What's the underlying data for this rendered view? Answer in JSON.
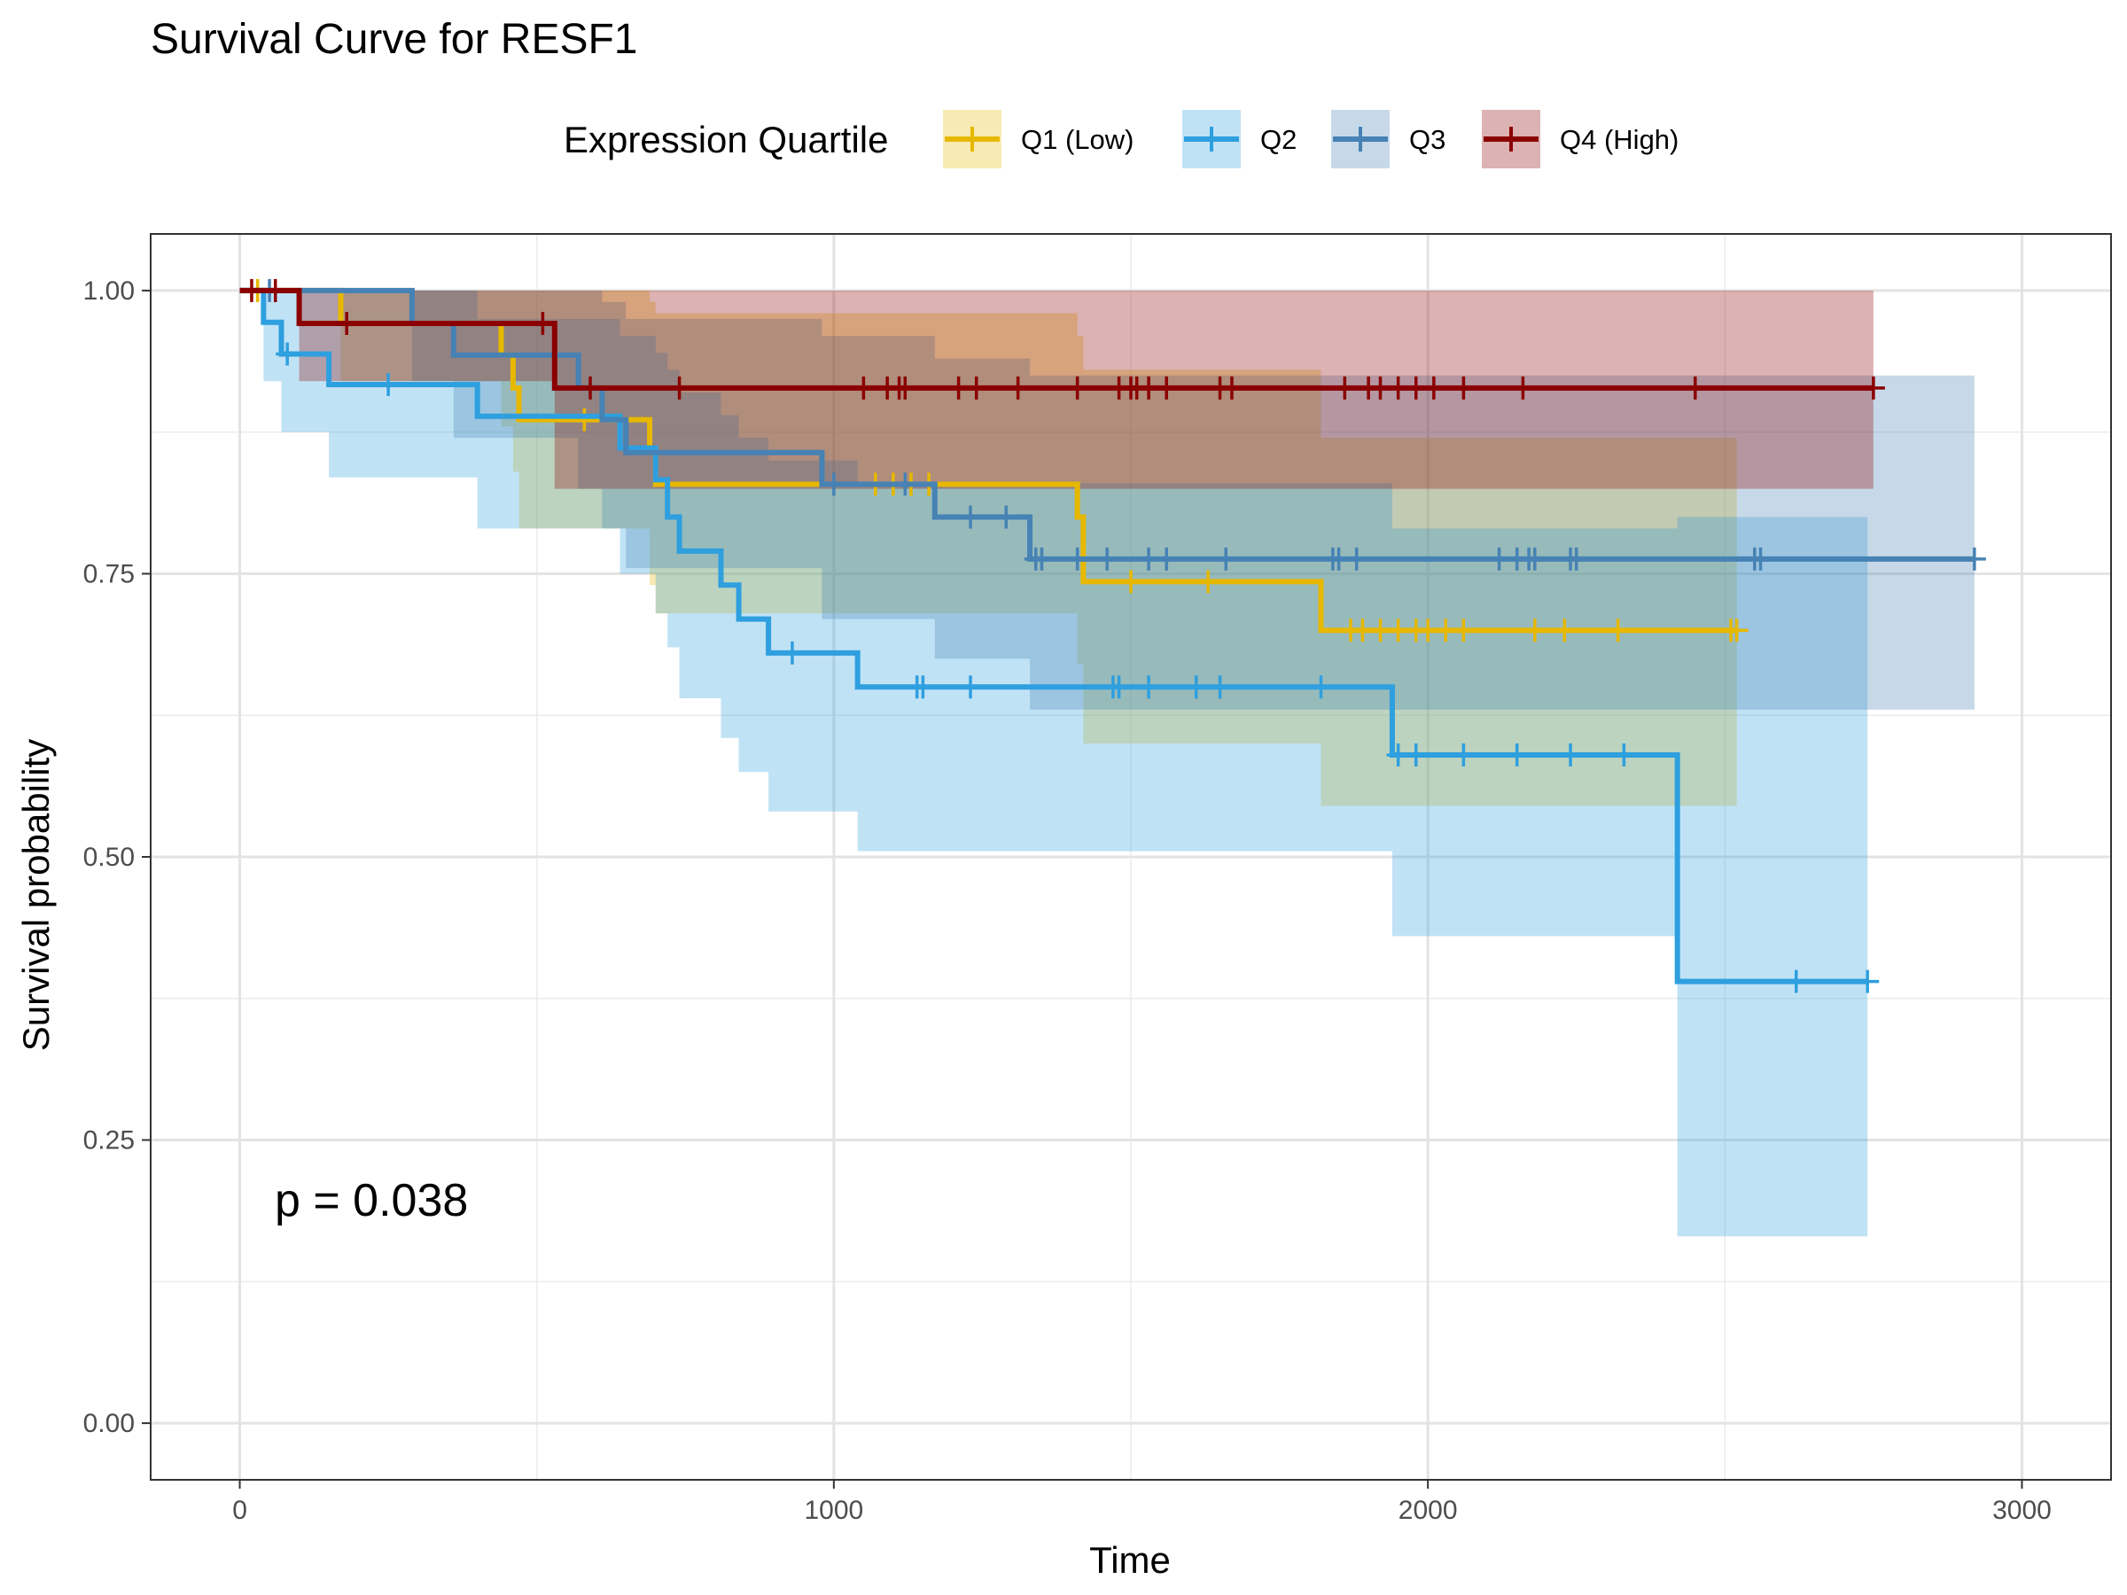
{
  "chart_data": {
    "type": "line",
    "title": "Survival Curve for RESF1",
    "xlabel": "Time",
    "ylabel": "Survival probability",
    "xlim": [
      -150,
      3150
    ],
    "ylim": [
      -0.05,
      1.05
    ],
    "x_ticks": [
      0,
      1000,
      2000,
      3000
    ],
    "y_ticks": [
      0,
      0.25,
      0.5,
      0.75,
      1
    ],
    "x_tick_labels": [
      "0",
      "1000",
      "2000",
      "3000"
    ],
    "y_tick_labels": [
      "0.00",
      "0.25",
      "0.50",
      "0.75",
      "1.00"
    ],
    "grid": true,
    "legend": {
      "title": "Expression Quartile",
      "placement": "top",
      "entries": [
        "Q1 (Low)",
        "Q2",
        "Q3",
        "Q4 (High)"
      ]
    },
    "annotation": "p = 0.038",
    "series": [
      {
        "name": "Q1 (Low)",
        "color": "#E7B800",
        "steps": [
          [
            0,
            1.0
          ],
          [
            170,
            0.971
          ],
          [
            440,
            0.943
          ],
          [
            460,
            0.914
          ],
          [
            470,
            0.886
          ],
          [
            690,
            0.857
          ],
          [
            700,
            0.829
          ],
          [
            1410,
            0.8
          ],
          [
            1420,
            0.771
          ],
          [
            1420,
            0.743
          ],
          [
            1820,
            0.7
          ],
          [
            2520,
            0.7
          ]
        ],
        "upper": [
          [
            0,
            1.0
          ],
          [
            170,
            1.0
          ],
          [
            440,
            1.0
          ],
          [
            460,
            1.0
          ],
          [
            470,
            1.0
          ],
          [
            690,
            0.99
          ],
          [
            700,
            0.98
          ],
          [
            1410,
            0.96
          ],
          [
            1420,
            0.93
          ],
          [
            1820,
            0.87
          ],
          [
            2520,
            0.87
          ]
        ],
        "lower": [
          [
            0,
            1.0
          ],
          [
            170,
            0.92
          ],
          [
            440,
            0.88
          ],
          [
            460,
            0.84
          ],
          [
            470,
            0.79
          ],
          [
            690,
            0.74
          ],
          [
            700,
            0.715
          ],
          [
            1410,
            0.67
          ],
          [
            1420,
            0.6
          ],
          [
            1820,
            0.545
          ],
          [
            2520,
            0.545
          ]
        ],
        "censor": [
          30,
          580,
          1070,
          1100,
          1130,
          1160,
          1500,
          1630,
          1870,
          1890,
          1920,
          1950,
          1980,
          2000,
          2030,
          2060,
          2180,
          2230,
          2320,
          2510,
          2520
        ]
      },
      {
        "name": "Q2",
        "color": "#2E9FDF",
        "steps": [
          [
            0,
            1.0
          ],
          [
            40,
            0.972
          ],
          [
            70,
            0.944
          ],
          [
            150,
            0.917
          ],
          [
            400,
            0.889
          ],
          [
            640,
            0.861
          ],
          [
            700,
            0.833
          ],
          [
            720,
            0.8
          ],
          [
            740,
            0.77
          ],
          [
            810,
            0.74
          ],
          [
            840,
            0.71
          ],
          [
            890,
            0.68
          ],
          [
            1040,
            0.65
          ],
          [
            1940,
            0.59
          ],
          [
            2420,
            0.39
          ],
          [
            2740,
            0.39
          ]
        ],
        "upper": [
          [
            0,
            1.0
          ],
          [
            40,
            1.0
          ],
          [
            70,
            1.0
          ],
          [
            150,
            1.0
          ],
          [
            400,
            0.975
          ],
          [
            640,
            0.96
          ],
          [
            700,
            0.945
          ],
          [
            720,
            0.93
          ],
          [
            740,
            0.91
          ],
          [
            810,
            0.89
          ],
          [
            840,
            0.87
          ],
          [
            890,
            0.85
          ],
          [
            1040,
            0.83
          ],
          [
            1940,
            0.79
          ],
          [
            2420,
            0.8
          ],
          [
            2740,
            0.8
          ]
        ],
        "lower": [
          [
            0,
            1.0
          ],
          [
            40,
            0.92
          ],
          [
            70,
            0.875
          ],
          [
            150,
            0.835
          ],
          [
            400,
            0.79
          ],
          [
            640,
            0.75
          ],
          [
            700,
            0.715
          ],
          [
            720,
            0.685
          ],
          [
            740,
            0.64
          ],
          [
            810,
            0.605
          ],
          [
            840,
            0.575
          ],
          [
            890,
            0.54
          ],
          [
            1040,
            0.505
          ],
          [
            1940,
            0.43
          ],
          [
            2420,
            0.165
          ],
          [
            2740,
            0.165
          ]
        ],
        "censor": [
          80,
          250,
          930,
          1140,
          1150,
          1230,
          1470,
          1480,
          1530,
          1610,
          1650,
          1820,
          1950,
          1980,
          2060,
          2150,
          2240,
          2330,
          2620,
          2740
        ]
      },
      {
        "name": "Q3",
        "color": "#4682B4",
        "steps": [
          [
            0,
            1.0
          ],
          [
            290,
            0.971
          ],
          [
            360,
            0.943
          ],
          [
            570,
            0.914
          ],
          [
            610,
            0.886
          ],
          [
            650,
            0.857
          ],
          [
            780,
            0.857
          ],
          [
            980,
            0.829
          ],
          [
            1170,
            0.8
          ],
          [
            1330,
            0.763
          ],
          [
            2920,
            0.763
          ]
        ],
        "upper": [
          [
            0,
            1.0
          ],
          [
            290,
            1.0
          ],
          [
            360,
            1.0
          ],
          [
            570,
            1.0
          ],
          [
            610,
            0.99
          ],
          [
            650,
            0.975
          ],
          [
            980,
            0.96
          ],
          [
            1170,
            0.94
          ],
          [
            1330,
            0.925
          ],
          [
            2920,
            0.925
          ]
        ],
        "lower": [
          [
            0,
            1.0
          ],
          [
            290,
            0.92
          ],
          [
            360,
            0.87
          ],
          [
            570,
            0.825
          ],
          [
            610,
            0.79
          ],
          [
            650,
            0.755
          ],
          [
            980,
            0.71
          ],
          [
            1170,
            0.675
          ],
          [
            1330,
            0.63
          ],
          [
            2920,
            0.63
          ]
        ],
        "censor": [
          50,
          1000,
          1120,
          1230,
          1290,
          1340,
          1350,
          1410,
          1460,
          1530,
          1560,
          1660,
          1840,
          1850,
          1880,
          2120,
          2150,
          2170,
          2180,
          2240,
          2250,
          2550,
          2560,
          2920
        ]
      },
      {
        "name": "Q4 (High)",
        "color": "#8B0000",
        "steps": [
          [
            0,
            1.0
          ],
          [
            100,
            0.971
          ],
          [
            530,
            0.914
          ],
          [
            2750,
            0.914
          ]
        ],
        "upper": [
          [
            0,
            1.0
          ],
          [
            100,
            1.0
          ],
          [
            530,
            1.0
          ],
          [
            2750,
            1.0
          ]
        ],
        "lower": [
          [
            0,
            1.0
          ],
          [
            100,
            0.92
          ],
          [
            530,
            0.825
          ],
          [
            2750,
            0.825
          ]
        ],
        "censor": [
          20,
          60,
          180,
          510,
          590,
          740,
          1050,
          1090,
          1110,
          1120,
          1210,
          1240,
          1310,
          1410,
          1480,
          1500,
          1510,
          1530,
          1560,
          1650,
          1670,
          1860,
          1900,
          1920,
          1950,
          1980,
          2010,
          2060,
          2160,
          2450,
          2750
        ]
      }
    ]
  }
}
